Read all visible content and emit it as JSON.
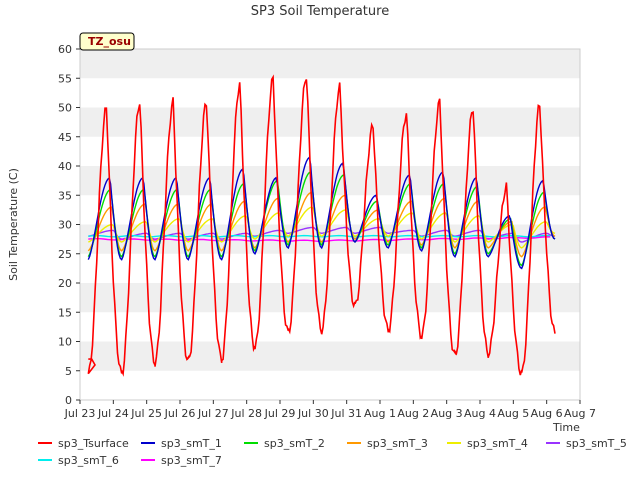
{
  "chart_data": {
    "type": "line",
    "title": "SP3 Soil Temperature",
    "xlabel": "Time",
    "ylabel": "Soil Temperature (C)",
    "annotation": "TZ_osu",
    "ylim": [
      0,
      60
    ],
    "yticks": [
      0,
      5,
      10,
      15,
      20,
      25,
      30,
      35,
      40,
      45,
      50,
      55,
      60
    ],
    "xlim": [
      "2024-07-23",
      "2024-08-07"
    ],
    "xticks": [
      "Jul 23",
      "Jul 24",
      "Jul 25",
      "Jul 26",
      "Jul 27",
      "Jul 28",
      "Jul 29",
      "Jul 30",
      "Jul 31",
      "Aug 1",
      "Aug 2",
      "Aug 3",
      "Aug 4",
      "Aug 5",
      "Aug 6",
      "Aug 7"
    ],
    "grid": "horizontal alternating bands",
    "legend": "bottom",
    "series": [
      {
        "name": "sp3_Tsurface",
        "color": "#ff0000",
        "daily_peak": [
          50,
          51,
          51,
          51,
          54,
          55,
          55.5,
          53.5,
          47,
          49,
          51,
          50,
          36.5,
          50.5
        ],
        "daily_min": [
          4.5,
          4.5,
          6.5,
          6.5,
          7,
          9,
          11.5,
          12,
          16,
          12,
          11,
          7.5,
          8,
          4.5
        ],
        "end": 11.5
      },
      {
        "name": "sp3_smT_1",
        "color": "#0000cc",
        "daily_peak": [
          38,
          38,
          38,
          38,
          39.5,
          38,
          41.5,
          40.5,
          35,
          38.5,
          39,
          38,
          31.5,
          37.5
        ],
        "daily_min": [
          24,
          24,
          24,
          24,
          24,
          25,
          26,
          26,
          27,
          26,
          25.5,
          24.5,
          24.5,
          22.5
        ],
        "end": 27.5
      },
      {
        "name": "sp3_smT_2",
        "color": "#00dd00",
        "daily_peak": [
          36,
          36,
          36,
          36,
          37,
          37.5,
          39,
          38.5,
          34,
          37,
          37,
          36.5,
          31,
          35.5
        ],
        "daily_min": [
          24.5,
          24.5,
          24.5,
          24.5,
          24.5,
          25.5,
          26.5,
          26.5,
          27,
          26.5,
          26,
          25,
          25,
          23
        ],
        "end": 27.5
      },
      {
        "name": "sp3_smT_3",
        "color": "#ff9900",
        "daily_peak": [
          33,
          33.5,
          33.5,
          33.5,
          34,
          34.5,
          35.5,
          35,
          32.5,
          34,
          34.5,
          34,
          30.5,
          33
        ],
        "daily_min": [
          25.5,
          25.5,
          25.5,
          25.5,
          25.5,
          26,
          27,
          27,
          27.5,
          27,
          26.5,
          26,
          26,
          24.5
        ],
        "end": 28
      },
      {
        "name": "sp3_smT_4",
        "color": "#eeee00",
        "daily_peak": [
          30,
          30.5,
          31,
          31,
          31.5,
          32,
          33,
          32.5,
          31,
          32,
          32,
          31.5,
          30,
          30.5
        ],
        "daily_min": [
          27,
          27,
          27,
          27,
          27,
          27.5,
          28,
          28,
          28,
          28,
          27.5,
          27,
          27,
          26
        ],
        "end": 28.5
      },
      {
        "name": "sp3_smT_5",
        "color": "#9933ff",
        "daily_peak": [
          29,
          28.5,
          28.5,
          28.5,
          28.5,
          29,
          29.5,
          29.5,
          29.5,
          29,
          29,
          29,
          28.5,
          28.5
        ],
        "daily_min": [
          28,
          27.5,
          27.5,
          27.5,
          27.5,
          28,
          28.5,
          28.5,
          28.5,
          28.5,
          28,
          28,
          27.5,
          27
        ],
        "end": 28
      },
      {
        "name": "sp3_smT_6",
        "color": "#00eeee",
        "start": 28,
        "end": 28
      },
      {
        "name": "sp3_smT_7",
        "color": "#ff00ff",
        "start": 27.5,
        "mid": 27.2,
        "end": 27.8
      }
    ]
  }
}
